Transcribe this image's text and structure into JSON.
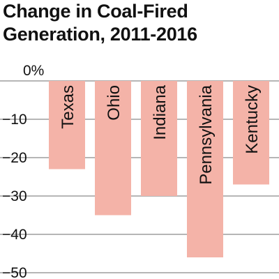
{
  "chart_data": {
    "type": "bar",
    "title_lines": [
      "Change in Coal-Fired",
      "Generation, 2011-2016"
    ],
    "categories": [
      "Texas",
      "Ohio",
      "Indiana",
      "Pennsylvania",
      "Kentucky"
    ],
    "values": [
      -23,
      -35,
      -30,
      -46,
      -27
    ],
    "ylim": [
      -50,
      0
    ],
    "yticks": [
      0,
      -10,
      -20,
      -30,
      -40,
      -50
    ],
    "ytick_labels": [
      "0%",
      "−10",
      "−20",
      "−30",
      "−40",
      "−50"
    ],
    "grid": true,
    "bar_color": "#f4b3a8",
    "grid_color": "#8a8a8a"
  }
}
